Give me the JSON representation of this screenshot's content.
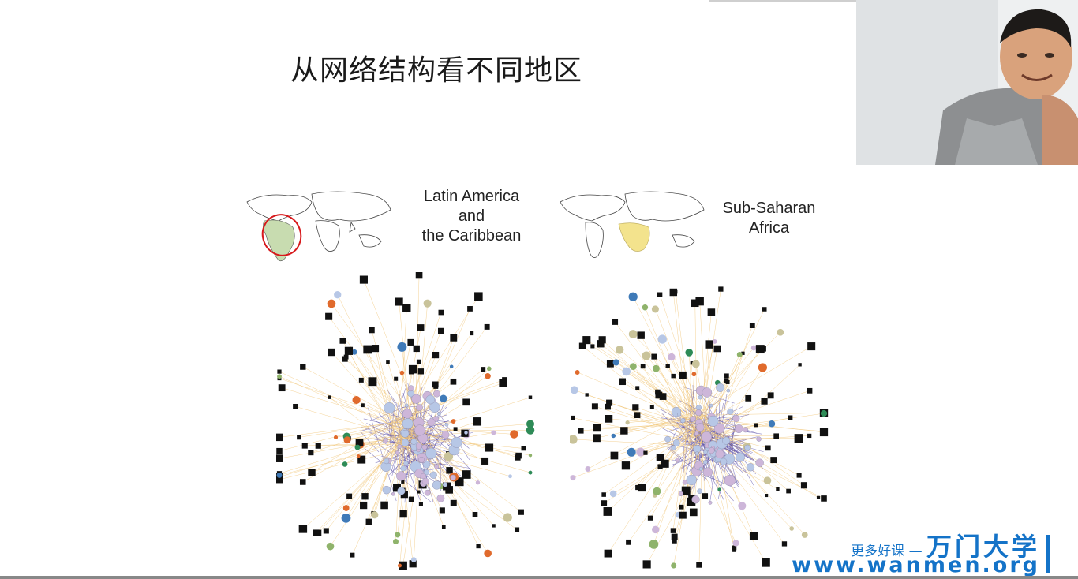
{
  "slide": {
    "title": "从网络结构看不同地区"
  },
  "panels": [
    {
      "label_lines": [
        "Latin America",
        "and",
        "the Caribbean"
      ],
      "highlight_color": "#c8dcb0",
      "outline_color": "#d7191c"
    },
    {
      "label_lines": [
        "Sub-Saharan",
        "Africa"
      ],
      "highlight_color": "#f3e38d"
    }
  ],
  "watermark": {
    "tagline": "更多好课 —",
    "brand": "万门大学",
    "url": "www.wanmen.org"
  },
  "colors": {
    "node_black": "#111111",
    "edge_purple": "#5b4fa8",
    "edge_yellow": "#f1c77a",
    "watermark_blue": "#1473c8"
  }
}
